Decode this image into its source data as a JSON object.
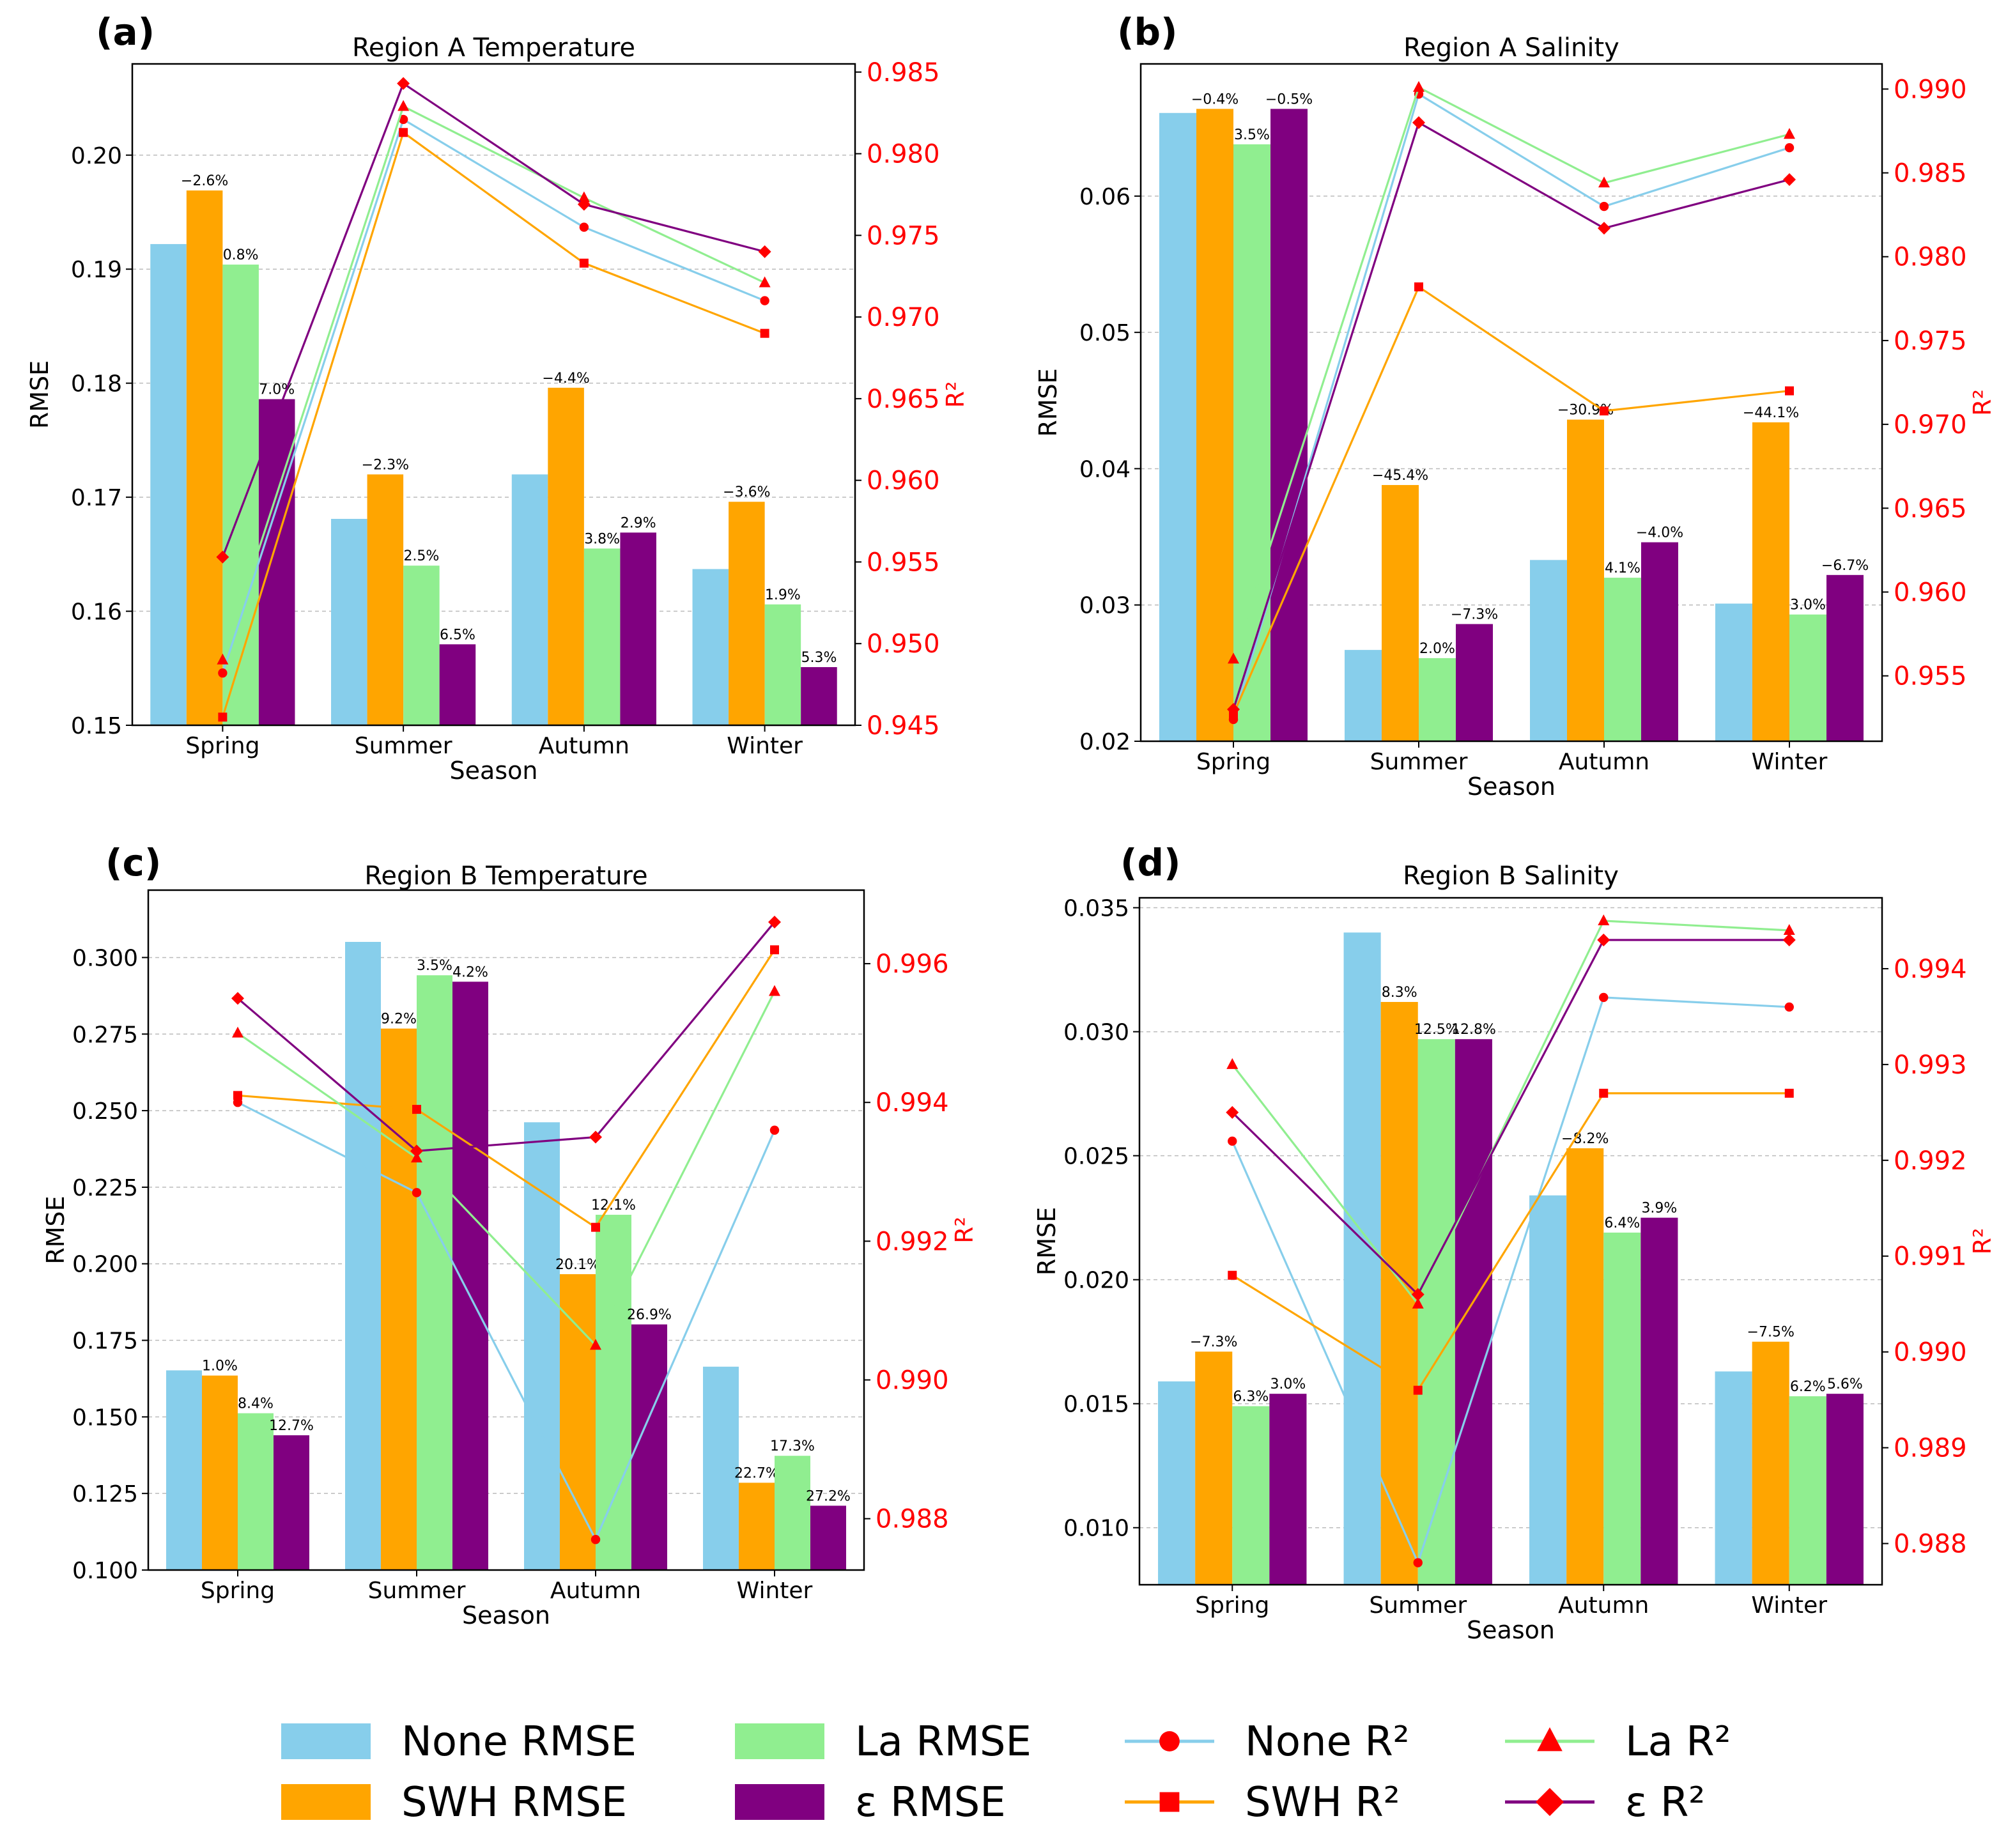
{
  "chart_data": [
    {
      "type": "bar",
      "panel_label": "(a)",
      "title": "Region A Temperature",
      "xlabel": "Season",
      "ylabel": "RMSE",
      "ylabel_right": "R²",
      "categories": [
        "Spring",
        "Summer",
        "Autumn",
        "Winter"
      ],
      "ylim": [
        0.15,
        0.208
      ],
      "yticks": [
        "0.15",
        "0.16",
        "0.17",
        "0.18",
        "0.19",
        "0.20"
      ],
      "ylim_right": [
        0.945,
        0.9855
      ],
      "yticks_right": [
        "0.945",
        "0.950",
        "0.955",
        "0.960",
        "0.965",
        "0.970",
        "0.975",
        "0.980",
        "0.985"
      ],
      "series": [
        {
          "name": "None RMSE",
          "color": "#87ceeb",
          "values": [
            0.1922,
            0.1681,
            0.172,
            0.1637
          ],
          "labels": [
            "",
            "",
            "",
            ""
          ]
        },
        {
          "name": "SWH RMSE",
          "color": "#ffa500",
          "values": [
            0.1969,
            0.172,
            0.1796,
            0.1696
          ],
          "labels": [
            "−2.6%",
            "−2.3%",
            "−4.4%",
            "−3.6%"
          ]
        },
        {
          "name": "La RMSE",
          "color": "#90ee90",
          "values": [
            0.1904,
            0.164,
            0.1655,
            0.1606
          ],
          "labels": [
            "0.8%",
            "2.5%",
            "3.8%",
            "1.9%"
          ]
        },
        {
          "name": "ε RMSE",
          "color": "#800080",
          "values": [
            0.1786,
            0.1571,
            0.1669,
            0.1551
          ],
          "labels": [
            "7.0%",
            "6.5%",
            "2.9%",
            "5.3%"
          ]
        }
      ],
      "r2_series": [
        {
          "name": "None R²",
          "color": "#87ceeb",
          "marker": "circle",
          "values": [
            0.9482,
            0.9821,
            0.9755,
            0.971
          ]
        },
        {
          "name": "SWH R²",
          "color": "#ffa500",
          "marker": "square",
          "values": [
            0.9455,
            0.9813,
            0.9733,
            0.969
          ]
        },
        {
          "name": "La R²",
          "color": "#90ee90",
          "marker": "triangle",
          "values": [
            0.949,
            0.9829,
            0.9773,
            0.9721
          ]
        },
        {
          "name": "ε R²",
          "color": "#800080",
          "marker": "diamond",
          "values": [
            0.9553,
            0.9843,
            0.9769,
            0.974
          ]
        }
      ]
    },
    {
      "type": "bar",
      "panel_label": "(b)",
      "title": "Region A Salinity",
      "xlabel": "Season",
      "ylabel": "RMSE",
      "ylabel_right": "R²",
      "categories": [
        "Spring",
        "Summer",
        "Autumn",
        "Winter"
      ],
      "ylim": [
        0.02,
        0.0697
      ],
      "yticks": [
        "0.02",
        "0.03",
        "0.04",
        "0.05",
        "0.06"
      ],
      "ylim_right": [
        0.9511,
        0.9915
      ],
      "yticks_right": [
        "0.955",
        "0.960",
        "0.965",
        "0.970",
        "0.975",
        "0.980",
        "0.985",
        "0.990"
      ],
      "series": [
        {
          "name": "None RMSE",
          "color": "#87ceeb",
          "values": [
            0.0661,
            0.0267,
            0.0333,
            0.0301
          ],
          "labels": [
            "",
            "",
            "",
            ""
          ]
        },
        {
          "name": "SWH RMSE",
          "color": "#ffa500",
          "values": [
            0.0664,
            0.0388,
            0.0436,
            0.0434
          ],
          "labels": [
            "−0.4%",
            "−45.4%",
            "−30.9%",
            "−44.1%"
          ]
        },
        {
          "name": "La RMSE",
          "color": "#90ee90",
          "values": [
            0.0638,
            0.0261,
            0.032,
            0.0293
          ],
          "labels": [
            "3.5%",
            "2.0%",
            "4.1%",
            "3.0%"
          ]
        },
        {
          "name": "ε RMSE",
          "color": "#800080",
          "values": [
            0.0664,
            0.0286,
            0.0346,
            0.0322
          ],
          "labels": [
            "−0.5%",
            "−7.3%",
            "−4.0%",
            "−6.7%"
          ]
        }
      ],
      "r2_series": [
        {
          "name": "None R²",
          "color": "#87ceeb",
          "marker": "circle",
          "values": [
            0.9524,
            0.9897,
            0.983,
            0.9865
          ]
        },
        {
          "name": "SWH R²",
          "color": "#ffa500",
          "marker": "square",
          "values": [
            0.9527,
            0.9782,
            0.9708,
            0.972
          ]
        },
        {
          "name": "La R²",
          "color": "#90ee90",
          "marker": "triangle",
          "values": [
            0.956,
            0.9901,
            0.9844,
            0.9873
          ]
        },
        {
          "name": "ε R²",
          "color": "#800080",
          "marker": "diamond",
          "values": [
            0.953,
            0.988,
            0.9817,
            0.9846
          ]
        }
      ]
    },
    {
      "type": "bar",
      "panel_label": "(c)",
      "title": "Region B Temperature",
      "xlabel": "Season",
      "ylabel": "RMSE",
      "ylabel_right": "R²",
      "categories": [
        "Spring",
        "Summer",
        "Autumn",
        "Winter"
      ],
      "ylim": [
        0.1,
        0.322
      ],
      "yticks": [
        "0.100",
        "0.125",
        "0.150",
        "0.175",
        "0.200",
        "0.225",
        "0.250",
        "0.275",
        "0.300"
      ],
      "ylim_right": [
        0.98726,
        0.99706
      ],
      "yticks_right": [
        "0.988",
        "0.990",
        "0.992",
        "0.994",
        "0.996"
      ],
      "series": [
        {
          "name": "None RMSE",
          "color": "#87ceeb",
          "values": [
            0.1652,
            0.3051,
            0.2462,
            0.1664
          ],
          "labels": [
            "",
            "",
            "",
            ""
          ]
        },
        {
          "name": "SWH RMSE",
          "color": "#ffa500",
          "values": [
            0.1635,
            0.2768,
            0.1966,
            0.1285
          ],
          "labels": [
            "1.0%",
            "9.2%",
            "20.1%",
            "22.7%"
          ]
        },
        {
          "name": "La RMSE",
          "color": "#90ee90",
          "values": [
            0.1512,
            0.2942,
            0.216,
            0.1373
          ],
          "labels": [
            "8.4%",
            "3.5%",
            "12.1%",
            "17.3%"
          ]
        },
        {
          "name": "ε RMSE",
          "color": "#800080",
          "values": [
            0.144,
            0.2921,
            0.1802,
            0.121
          ],
          "labels": [
            "12.7%",
            "4.2%",
            "26.9%",
            "27.2%"
          ]
        }
      ],
      "r2_series": [
        {
          "name": "None R²",
          "color": "#87ceeb",
          "marker": "circle",
          "values": [
            0.994,
            0.9927,
            0.9877,
            0.9936
          ]
        },
        {
          "name": "SWH R²",
          "color": "#ffa500",
          "marker": "square",
          "values": [
            0.9941,
            0.9939,
            0.9922,
            0.9962
          ]
        },
        {
          "name": "La R²",
          "color": "#90ee90",
          "marker": "triangle",
          "values": [
            0.995,
            0.9932,
            0.9905,
            0.9956
          ]
        },
        {
          "name": "ε R²",
          "color": "#800080",
          "marker": "diamond",
          "values": [
            0.9955,
            0.9933,
            0.9935,
            0.9966
          ]
        }
      ]
    },
    {
      "type": "bar",
      "panel_label": "(d)",
      "title": "Region B Salinity",
      "xlabel": "Season",
      "ylabel": "RMSE",
      "ylabel_right": "R²",
      "categories": [
        "Spring",
        "Summer",
        "Autumn",
        "Winter"
      ],
      "ylim": [
        0.0077,
        0.0354
      ],
      "yticks": [
        "0.010",
        "0.015",
        "0.020",
        "0.025",
        "0.030",
        "0.035"
      ],
      "ylim_right": [
        0.98757,
        0.99474
      ],
      "yticks_right": [
        "0.988",
        "0.989",
        "0.990",
        "0.991",
        "0.992",
        "0.993",
        "0.994"
      ],
      "series": [
        {
          "name": "None RMSE",
          "color": "#87ceeb",
          "values": [
            0.0159,
            0.034,
            0.0234,
            0.0163
          ],
          "labels": [
            "",
            "",
            "",
            ""
          ]
        },
        {
          "name": "SWH RMSE",
          "color": "#ffa500",
          "values": [
            0.0171,
            0.0312,
            0.0253,
            0.0175
          ],
          "labels": [
            "−7.3%",
            "8.3%",
            "−8.2%",
            "−7.5%"
          ]
        },
        {
          "name": "La RMSE",
          "color": "#90ee90",
          "values": [
            0.0149,
            0.0297,
            0.0219,
            0.0153
          ],
          "labels": [
            "6.3%",
            "12.5%",
            "6.4%",
            "6.2%"
          ]
        },
        {
          "name": "ε RMSE",
          "color": "#800080",
          "values": [
            0.0154,
            0.0297,
            0.0225,
            0.0154
          ],
          "labels": [
            "3.0%",
            "12.8%",
            "3.9%",
            "5.6%"
          ]
        }
      ],
      "r2_series": [
        {
          "name": "None R²",
          "color": "#87ceeb",
          "marker": "circle",
          "values": [
            0.9922,
            0.9878,
            0.9937,
            0.9936
          ]
        },
        {
          "name": "SWH R²",
          "color": "#ffa500",
          "marker": "square",
          "values": [
            0.9908,
            0.9896,
            0.9927,
            0.9927
          ]
        },
        {
          "name": "La R²",
          "color": "#90ee90",
          "marker": "triangle",
          "values": [
            0.993,
            0.9905,
            0.9945,
            0.9944
          ]
        },
        {
          "name": "ε R²",
          "color": "#800080",
          "marker": "diamond",
          "values": [
            0.9925,
            0.9906,
            0.9943,
            0.9943
          ]
        }
      ]
    }
  ],
  "legend": [
    {
      "label": "None RMSE",
      "kind": "bar",
      "color": "#87ceeb"
    },
    {
      "label": "SWH RMSE",
      "kind": "bar",
      "color": "#ffa500"
    },
    {
      "label": "La RMSE",
      "kind": "bar",
      "color": "#90ee90"
    },
    {
      "label": "ε RMSE",
      "kind": "bar",
      "color": "#800080"
    },
    {
      "label": "None R²",
      "kind": "line",
      "color": "#87ceeb",
      "marker": "circle"
    },
    {
      "label": "SWH R²",
      "kind": "line",
      "color": "#ffa500",
      "marker": "square"
    },
    {
      "label": "La R²",
      "kind": "line",
      "color": "#90ee90",
      "marker": "triangle"
    },
    {
      "label": "ε R²",
      "kind": "line",
      "color": "#800080",
      "marker": "diamond"
    }
  ],
  "marker_color": "#ff0000"
}
